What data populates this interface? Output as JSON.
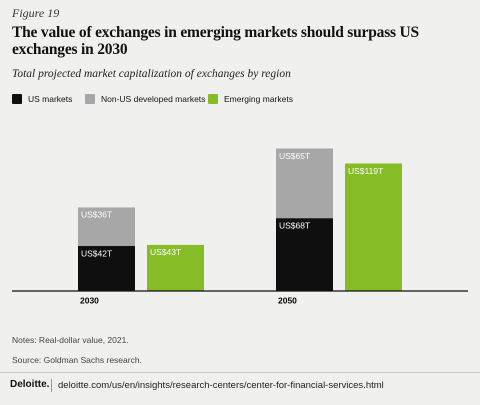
{
  "figure_label": "Figure 19",
  "chart_data": {
    "type": "bar",
    "title": "The value of exchanges in emerging markets should surpass US exchanges in 2030",
    "subtitle": "Total projected market capitalization of exchanges by region",
    "categories": [
      "2030",
      "2050"
    ],
    "series": [
      {
        "name": "US markets",
        "color": "#0f0f0f",
        "stacked": true,
        "values": [
          42,
          68
        ],
        "value_labels": [
          "US$42T",
          "US$68T"
        ]
      },
      {
        "name": "Non-US developed markets",
        "color": "#a7a7a7",
        "stacked": true,
        "values": [
          36,
          65
        ],
        "value_labels": [
          "US$36T",
          "US$65T"
        ]
      },
      {
        "name": "Emerging markets",
        "color": "#86bc25",
        "stacked": false,
        "values": [
          43,
          119
        ],
        "value_labels": [
          "US$43T",
          "US$119T"
        ]
      }
    ],
    "ylim": [
      0,
      140
    ],
    "legend": "top-left"
  },
  "notes": "Notes: Real-dollar value, 2021.",
  "source": "Source: Goldman Sachs research.",
  "footer": {
    "brand": "Deloitte.",
    "url": "deloitte.com/us/en/insights/research-centers/center-for-financial-services.html"
  }
}
